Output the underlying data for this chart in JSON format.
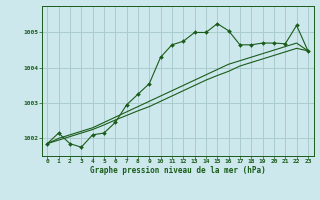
{
  "xlabel": "Graphe pression niveau de la mer (hPa)",
  "background_color": "#cce8ec",
  "grid_color": "#aacccc",
  "line_color": "#1a5c1a",
  "hours": [
    0,
    1,
    2,
    3,
    4,
    5,
    6,
    7,
    8,
    9,
    10,
    11,
    12,
    13,
    14,
    15,
    16,
    17,
    18,
    19,
    20,
    21,
    22,
    23
  ],
  "pressure_main": [
    1001.85,
    1002.15,
    1001.85,
    1001.75,
    1002.1,
    1002.15,
    1002.45,
    1002.95,
    1003.25,
    1003.55,
    1004.3,
    1004.65,
    1004.75,
    1005.0,
    1005.0,
    1005.25,
    1005.05,
    1004.65,
    1004.65,
    1004.7,
    1004.7,
    1004.68,
    1005.2,
    1004.48
  ],
  "pressure_trend1": [
    1001.85,
    1002.0,
    1002.1,
    1002.2,
    1002.3,
    1002.45,
    1002.6,
    1002.75,
    1002.9,
    1003.05,
    1003.2,
    1003.35,
    1003.5,
    1003.65,
    1003.8,
    1003.95,
    1004.1,
    1004.2,
    1004.3,
    1004.4,
    1004.5,
    1004.6,
    1004.7,
    1004.48
  ],
  "pressure_trend2": [
    1001.85,
    1001.95,
    1002.05,
    1002.15,
    1002.25,
    1002.38,
    1002.52,
    1002.65,
    1002.78,
    1002.9,
    1003.05,
    1003.2,
    1003.35,
    1003.5,
    1003.65,
    1003.78,
    1003.9,
    1004.05,
    1004.15,
    1004.25,
    1004.35,
    1004.45,
    1004.55,
    1004.48
  ],
  "ylim": [
    1001.5,
    1005.75
  ],
  "yticks": [
    1002,
    1003,
    1004,
    1005
  ],
  "xlim": [
    -0.5,
    23.5
  ],
  "xticks": [
    0,
    1,
    2,
    3,
    4,
    5,
    6,
    7,
    8,
    9,
    10,
    11,
    12,
    13,
    14,
    15,
    16,
    17,
    18,
    19,
    20,
    21,
    22,
    23
  ]
}
